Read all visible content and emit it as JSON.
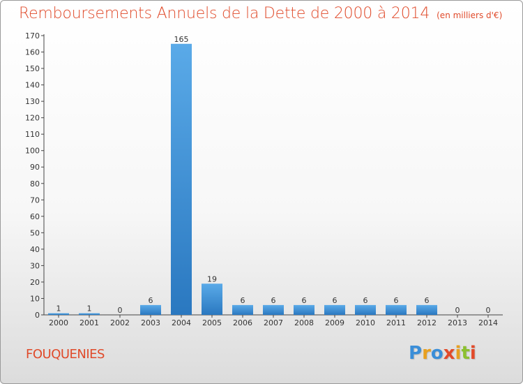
{
  "header": {
    "title": "Remboursements Annuels de la Dette de 2000 à 2014",
    "unit": "(en milliers d'€)"
  },
  "footer": {
    "town": "FOUQUENIES",
    "logo_letters": [
      "P",
      "r",
      "o",
      "x",
      "i",
      "t",
      "i"
    ]
  },
  "colors": {
    "bar_top": "#5aaae8",
    "bar_bottom": "#2a78c0",
    "title": "#e04a2a"
  },
  "chart_data": {
    "type": "bar",
    "title": "Remboursements Annuels de la Dette de 2000 à 2014",
    "xlabel": "",
    "ylabel": "en milliers d'€",
    "categories": [
      "2000",
      "2001",
      "2002",
      "2003",
      "2004",
      "2005",
      "2006",
      "2007",
      "2008",
      "2009",
      "2010",
      "2011",
      "2012",
      "2013",
      "2014"
    ],
    "values": [
      1,
      1,
      0,
      6,
      165,
      19,
      6,
      6,
      6,
      6,
      6,
      6,
      6,
      0,
      0
    ],
    "value_labels": [
      "1",
      "1",
      "0",
      "6",
      "165",
      "19",
      "6",
      "6",
      "6",
      "6",
      "6",
      "6",
      "6",
      "0",
      "0"
    ],
    "ylim": [
      0,
      170
    ],
    "yticks": [
      0,
      10,
      20,
      30,
      40,
      50,
      60,
      70,
      80,
      90,
      100,
      110,
      120,
      130,
      140,
      150,
      160,
      170
    ],
    "grid": false,
    "legend": "none"
  }
}
